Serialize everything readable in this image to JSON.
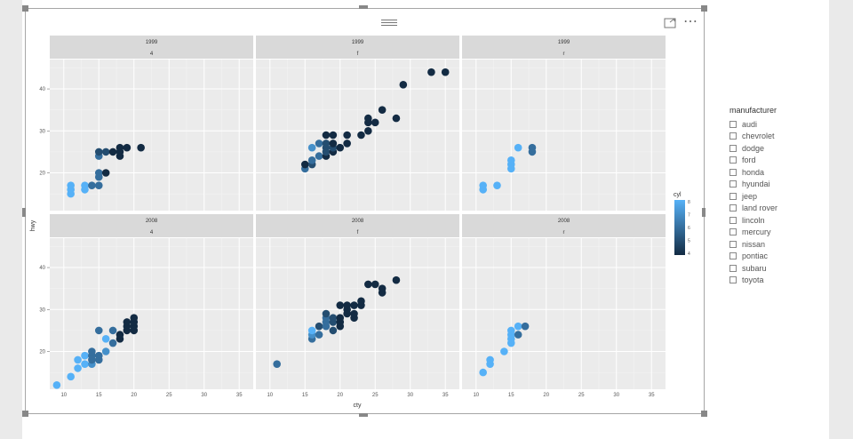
{
  "slicer": {
    "title": "manufacturer",
    "items": [
      "audi",
      "chevrolet",
      "dodge",
      "ford",
      "honda",
      "hyundai",
      "jeep",
      "land rover",
      "lincoln",
      "mercury",
      "nissan",
      "pontiac",
      "subaru",
      "toyota"
    ]
  },
  "visual_header": {
    "focus_icon": "focus-mode-icon",
    "more_icon": "more-options-icon",
    "more_text": "⋯"
  },
  "chart_data": {
    "type": "scatter",
    "xlabel": "cty",
    "ylabel": "hwy",
    "xlim": [
      8,
      37
    ],
    "ylim": [
      11,
      47
    ],
    "x_ticks": [
      10,
      15,
      20,
      25,
      30,
      35
    ],
    "y_ticks": [
      20,
      30,
      40
    ],
    "grid": true,
    "color_legend": {
      "title": "cyl",
      "ticks": [
        4,
        5,
        6,
        7,
        8
      ],
      "low_color": "#132b43",
      "high_color": "#56b1f7"
    },
    "facet_rows": [
      "1999",
      "2008"
    ],
    "facet_cols": [
      "4",
      "f",
      "r"
    ],
    "panels": [
      {
        "year": "1999",
        "drv": "4",
        "points": [
          [
            11,
            15,
            8
          ],
          [
            11,
            16,
            8
          ],
          [
            11,
            17,
            8
          ],
          [
            13,
            16,
            8
          ],
          [
            13,
            17,
            8
          ],
          [
            14,
            17,
            6
          ],
          [
            15,
            17,
            6
          ],
          [
            15,
            19,
            6
          ],
          [
            15,
            20,
            6
          ],
          [
            15,
            24,
            6
          ],
          [
            15,
            25,
            5
          ],
          [
            16,
            25,
            5
          ],
          [
            16,
            20,
            4
          ],
          [
            17,
            25,
            4
          ],
          [
            18,
            24,
            4
          ],
          [
            18,
            25,
            4
          ],
          [
            18,
            26,
            4
          ],
          [
            19,
            26,
            4
          ],
          [
            21,
            26,
            4
          ]
        ]
      },
      {
        "year": "1999",
        "drv": "f",
        "points": [
          [
            15,
            21,
            6
          ],
          [
            15,
            22,
            4
          ],
          [
            16,
            22,
            5
          ],
          [
            16,
            23,
            6
          ],
          [
            16,
            26,
            7
          ],
          [
            17,
            24,
            6
          ],
          [
            17,
            27,
            6
          ],
          [
            18,
            24,
            4
          ],
          [
            18,
            25,
            5
          ],
          [
            18,
            26,
            5
          ],
          [
            18,
            27,
            5
          ],
          [
            18,
            29,
            4
          ],
          [
            19,
            25,
            4
          ],
          [
            19,
            26,
            5
          ],
          [
            19,
            27,
            4
          ],
          [
            19,
            29,
            4
          ],
          [
            20,
            26,
            4
          ],
          [
            21,
            27,
            4
          ],
          [
            21,
            29,
            4
          ],
          [
            23,
            29,
            4
          ],
          [
            24,
            30,
            4
          ],
          [
            24,
            32,
            4
          ],
          [
            24,
            33,
            4
          ],
          [
            25,
            32,
            4
          ],
          [
            26,
            35,
            4
          ],
          [
            28,
            33,
            4
          ],
          [
            29,
            41,
            4
          ],
          [
            33,
            44,
            4
          ],
          [
            35,
            44,
            4
          ]
        ]
      },
      {
        "year": "1999",
        "drv": "r",
        "points": [
          [
            11,
            16,
            8
          ],
          [
            11,
            17,
            8
          ],
          [
            13,
            17,
            8
          ],
          [
            15,
            21,
            8
          ],
          [
            15,
            22,
            8
          ],
          [
            15,
            23,
            8
          ],
          [
            16,
            26,
            8
          ],
          [
            18,
            25,
            6
          ],
          [
            18,
            26,
            6
          ]
        ]
      },
      {
        "year": "2008",
        "drv": "4",
        "points": [
          [
            9,
            12,
            8
          ],
          [
            11,
            14,
            8
          ],
          [
            12,
            16,
            8
          ],
          [
            12,
            18,
            8
          ],
          [
            13,
            17,
            8
          ],
          [
            13,
            19,
            8
          ],
          [
            14,
            17,
            7
          ],
          [
            14,
            18,
            6
          ],
          [
            14,
            19,
            6
          ],
          [
            14,
            20,
            6
          ],
          [
            15,
            18,
            6
          ],
          [
            15,
            19,
            6
          ],
          [
            15,
            25,
            6
          ],
          [
            16,
            20,
            7
          ],
          [
            16,
            23,
            8
          ],
          [
            17,
            22,
            6
          ],
          [
            17,
            25,
            6
          ],
          [
            18,
            23,
            4
          ],
          [
            18,
            24,
            4
          ],
          [
            19,
            25,
            4
          ],
          [
            19,
            26,
            4
          ],
          [
            19,
            27,
            4
          ],
          [
            20,
            25,
            4
          ],
          [
            20,
            26,
            4
          ],
          [
            20,
            27,
            4
          ],
          [
            20,
            28,
            4
          ]
        ]
      },
      {
        "year": "2008",
        "drv": "f",
        "points": [
          [
            11,
            17,
            6
          ],
          [
            16,
            23,
            6
          ],
          [
            16,
            24,
            7
          ],
          [
            16,
            25,
            8
          ],
          [
            17,
            24,
            6
          ],
          [
            17,
            26,
            5
          ],
          [
            18,
            26,
            6
          ],
          [
            18,
            27,
            6
          ],
          [
            18,
            28,
            6
          ],
          [
            18,
            29,
            5
          ],
          [
            19,
            25,
            5
          ],
          [
            19,
            27,
            5
          ],
          [
            19,
            28,
            5
          ],
          [
            20,
            26,
            4
          ],
          [
            20,
            27,
            4
          ],
          [
            20,
            28,
            4
          ],
          [
            20,
            31,
            4
          ],
          [
            21,
            29,
            4
          ],
          [
            21,
            30,
            4
          ],
          [
            21,
            31,
            4
          ],
          [
            22,
            28,
            4
          ],
          [
            22,
            29,
            4
          ],
          [
            22,
            31,
            4
          ],
          [
            23,
            31,
            4
          ],
          [
            23,
            32,
            4
          ],
          [
            24,
            36,
            4
          ],
          [
            25,
            36,
            4
          ],
          [
            26,
            34,
            4
          ],
          [
            26,
            35,
            4
          ],
          [
            28,
            37,
            4
          ]
        ]
      },
      {
        "year": "2008",
        "drv": "r",
        "points": [
          [
            11,
            15,
            8
          ],
          [
            12,
            17,
            8
          ],
          [
            12,
            18,
            8
          ],
          [
            14,
            20,
            8
          ],
          [
            15,
            22,
            8
          ],
          [
            15,
            23,
            8
          ],
          [
            15,
            24,
            8
          ],
          [
            15,
            25,
            8
          ],
          [
            16,
            24,
            6
          ],
          [
            16,
            26,
            8
          ],
          [
            17,
            26,
            6
          ]
        ]
      }
    ]
  }
}
